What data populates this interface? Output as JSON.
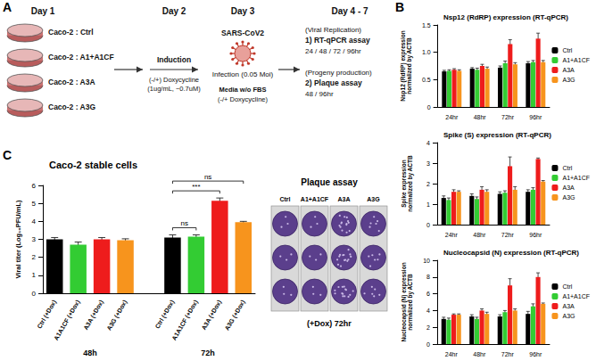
{
  "panel_labels": [
    "A",
    "B",
    "C"
  ],
  "diagram": {
    "day1": {
      "label": "Day 1",
      "items": [
        "Caco-2 : Ctrl",
        "Caco-2 : A1+A1CF",
        "Caco-2 : A3A",
        "Caco-2 : A3G"
      ]
    },
    "day2": {
      "label": "Day 2",
      "above": [
        "Induction"
      ],
      "below": [
        "(-/+) Doxycycline",
        "(1ug/mL, ~0.7uM)"
      ]
    },
    "day3": {
      "label": "Day 3",
      "above": [
        "SARS-CoV2"
      ],
      "below": [
        "Infection (0.05 Moi)",
        "Media w/o FBS",
        "(-/+ Doxycycline)"
      ]
    },
    "day4": {
      "label": "Day 4 - 7",
      "lines": [
        "(Viral Replication)",
        "1) RT-qPCR assay",
        "24 / 48 / 72 / 96hr",
        "(Progeny production)",
        "2) Plaque assay",
        "48 / 96hr"
      ]
    }
  },
  "chart_data": [
    {
      "type": "bar",
      "title": "Nsp12 (RdRP) expression (RT-qPCR)",
      "ylabel": "Nsp12 (RdRP) expression\nnormalized by ACTB",
      "categories": [
        "24hr",
        "48hr",
        "72hr",
        "96hr"
      ],
      "series": [
        {
          "name": "Ctrl",
          "color": "#000000",
          "values": [
            0.65,
            0.7,
            0.72,
            0.8
          ],
          "errors": [
            0.02,
            0.02,
            0.03,
            0.03
          ]
        },
        {
          "name": "A1+A1CF",
          "color": "#33cc33",
          "values": [
            0.66,
            0.68,
            0.8,
            0.82
          ],
          "errors": [
            0.02,
            0.03,
            0.04,
            0.03
          ]
        },
        {
          "name": "A3A",
          "color": "#ee1c1c",
          "values": [
            0.68,
            0.75,
            1.15,
            1.25
          ],
          "errors": [
            0.02,
            0.03,
            0.08,
            0.1
          ]
        },
        {
          "name": "A3G",
          "color": "#f7941d",
          "values": [
            0.66,
            0.7,
            0.78,
            0.82
          ],
          "errors": [
            0.02,
            0.03,
            0.03,
            0.03
          ]
        }
      ],
      "ylim": [
        0,
        1.5
      ],
      "yticks": [
        0,
        0.5,
        {
          "value": 1,
          "label": "1.0"
        },
        1.5
      ],
      "grid": false,
      "legend": "right"
    },
    {
      "type": "bar",
      "title": "Spike (S) expression (RT-qPCR)",
      "ylabel": "Spike expression\nnormalized by ACTB",
      "categories": [
        "24hr",
        "48hr",
        "72hr",
        "96hr"
      ],
      "series": [
        {
          "name": "Ctrl",
          "color": "#000000",
          "values": [
            1.3,
            1.4,
            1.5,
            1.6
          ],
          "errors": [
            0.1,
            0.1,
            0.1,
            0.1
          ]
        },
        {
          "name": "A1+A1CF",
          "color": "#33cc33",
          "values": [
            1.2,
            1.25,
            1.55,
            1.7
          ],
          "errors": [
            0.1,
            0.1,
            0.1,
            0.1
          ]
        },
        {
          "name": "A3A",
          "color": "#ee1c1c",
          "values": [
            1.6,
            1.7,
            2.85,
            3.2
          ],
          "errors": [
            0.1,
            0.15,
            0.45,
            0.05
          ]
        },
        {
          "name": "A3G",
          "color": "#f7941d",
          "values": [
            1.6,
            1.6,
            1.7,
            2.1
          ],
          "errors": [
            0.05,
            0.1,
            0.15,
            0.05
          ]
        }
      ],
      "ylim": [
        0,
        4
      ],
      "yticks": [
        0,
        1,
        2,
        3,
        4
      ],
      "grid": false,
      "legend": "right"
    },
    {
      "type": "bar",
      "title": "Nucleocapsid (N) expression (RT-qPCR)",
      "ylabel": "Nucleocapsid (N) expression\nnormalized by ACTB",
      "categories": [
        "24hr",
        "48hr",
        "72hr",
        "96hr"
      ],
      "series": [
        {
          "name": "Ctrl",
          "color": "#000000",
          "values": [
            3.0,
            3.3,
            3.3,
            3.6
          ],
          "errors": [
            0.2,
            0.2,
            0.2,
            0.3
          ]
        },
        {
          "name": "A1+A1CF",
          "color": "#33cc33",
          "values": [
            2.9,
            3.0,
            3.8,
            4.5
          ],
          "errors": [
            0.2,
            0.2,
            0.2,
            0.3
          ]
        },
        {
          "name": "A3A",
          "color": "#ee1c1c",
          "values": [
            3.5,
            4.0,
            7.0,
            8.0
          ],
          "errors": [
            0.1,
            0.2,
            0.8,
            0.5
          ]
        },
        {
          "name": "A3G",
          "color": "#f7941d",
          "values": [
            3.5,
            3.6,
            4.0,
            4.8
          ],
          "errors": [
            0.1,
            0.2,
            0.2,
            0.1
          ]
        }
      ],
      "ylim": [
        0,
        10
      ],
      "yticks": [
        0,
        2,
        4,
        6,
        8,
        10
      ],
      "grid": false,
      "legend": "right"
    },
    {
      "type": "bar",
      "title": "Caco-2 stable cells",
      "ylabel": "Viral titer (Log₁₀PFU/mL)",
      "categories": [
        "Ctrl (+Dox)",
        "A1A1CF (+Dox)",
        "A3A (+Dox)",
        "A3G (+Dox)",
        null,
        "Ctrl (+Dox)",
        "A1A1CF (+Dox)",
        "A3A (+Dox)",
        "A3G (+Dox)"
      ],
      "values": [
        3.0,
        2.7,
        3.0,
        2.95,
        null,
        3.1,
        3.15,
        5.15,
        3.95
      ],
      "errors": [
        0.1,
        0.15,
        0.1,
        0.08,
        null,
        0.15,
        0.1,
        0.15,
        0.05
      ],
      "colors": [
        "#000000",
        "#33cc33",
        "#ee1c1c",
        "#f7941d",
        null,
        "#000000",
        "#33cc33",
        "#ee1c1c",
        "#f7941d"
      ],
      "ylim": [
        0,
        6
      ],
      "yticks": [
        0,
        1,
        2,
        3,
        4,
        5,
        6
      ],
      "grid": false,
      "groups": [
        {
          "label": "48h",
          "from": 0,
          "to": 3
        },
        {
          "label": "72h",
          "from": 5,
          "to": 8
        }
      ],
      "annotations": [
        {
          "text": "ns",
          "from": 5,
          "to": 6
        },
        {
          "text": "***",
          "from": 5,
          "to": 7
        },
        {
          "text": "ns",
          "from": 5,
          "to": 8
        }
      ]
    }
  ],
  "plaque_assay": {
    "title": "Plaque assay",
    "columns": [
      "Ctrl",
      "A1+A1CF",
      "A3A",
      "A3G"
    ],
    "caption": "(+Dox) 72hr"
  }
}
